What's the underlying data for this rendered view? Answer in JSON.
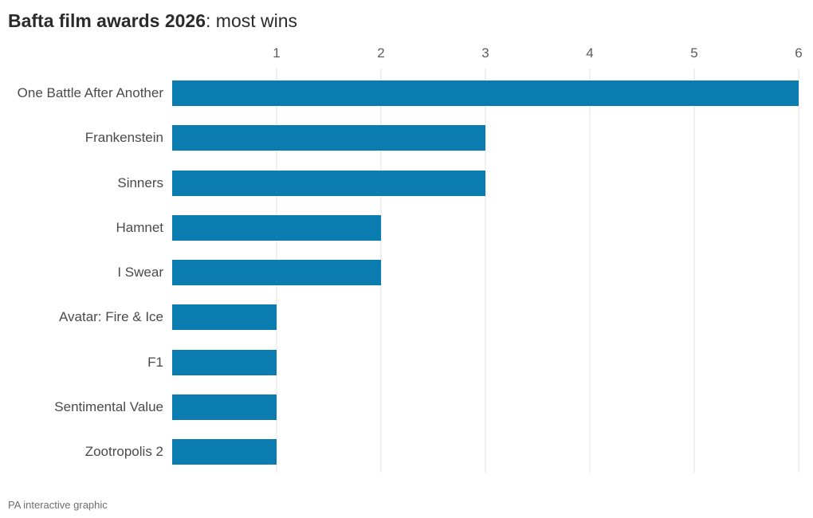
{
  "title": {
    "bold": "Bafta film awards 2026",
    "rest": ": most wins"
  },
  "footer": "PA interactive graphic",
  "chart_data": {
    "type": "bar",
    "orientation": "horizontal",
    "title": "Bafta film awards 2026: most wins",
    "categories": [
      "One Battle After Another",
      "Frankenstein",
      "Sinners",
      "Hamnet",
      "I Swear",
      "Avatar: Fire & Ice",
      "F1",
      "Sentimental Value",
      "Zootropolis 2"
    ],
    "values": [
      6,
      3,
      3,
      2,
      2,
      1,
      1,
      1,
      1
    ],
    "xlabel": "",
    "ylabel": "",
    "xlim": [
      0,
      6
    ],
    "x_ticks": [
      1,
      2,
      3,
      4,
      5,
      6
    ],
    "grid": true,
    "legend": "none",
    "bar_color": "#0b7cb0",
    "gridline_color": "#e0e0e0"
  }
}
